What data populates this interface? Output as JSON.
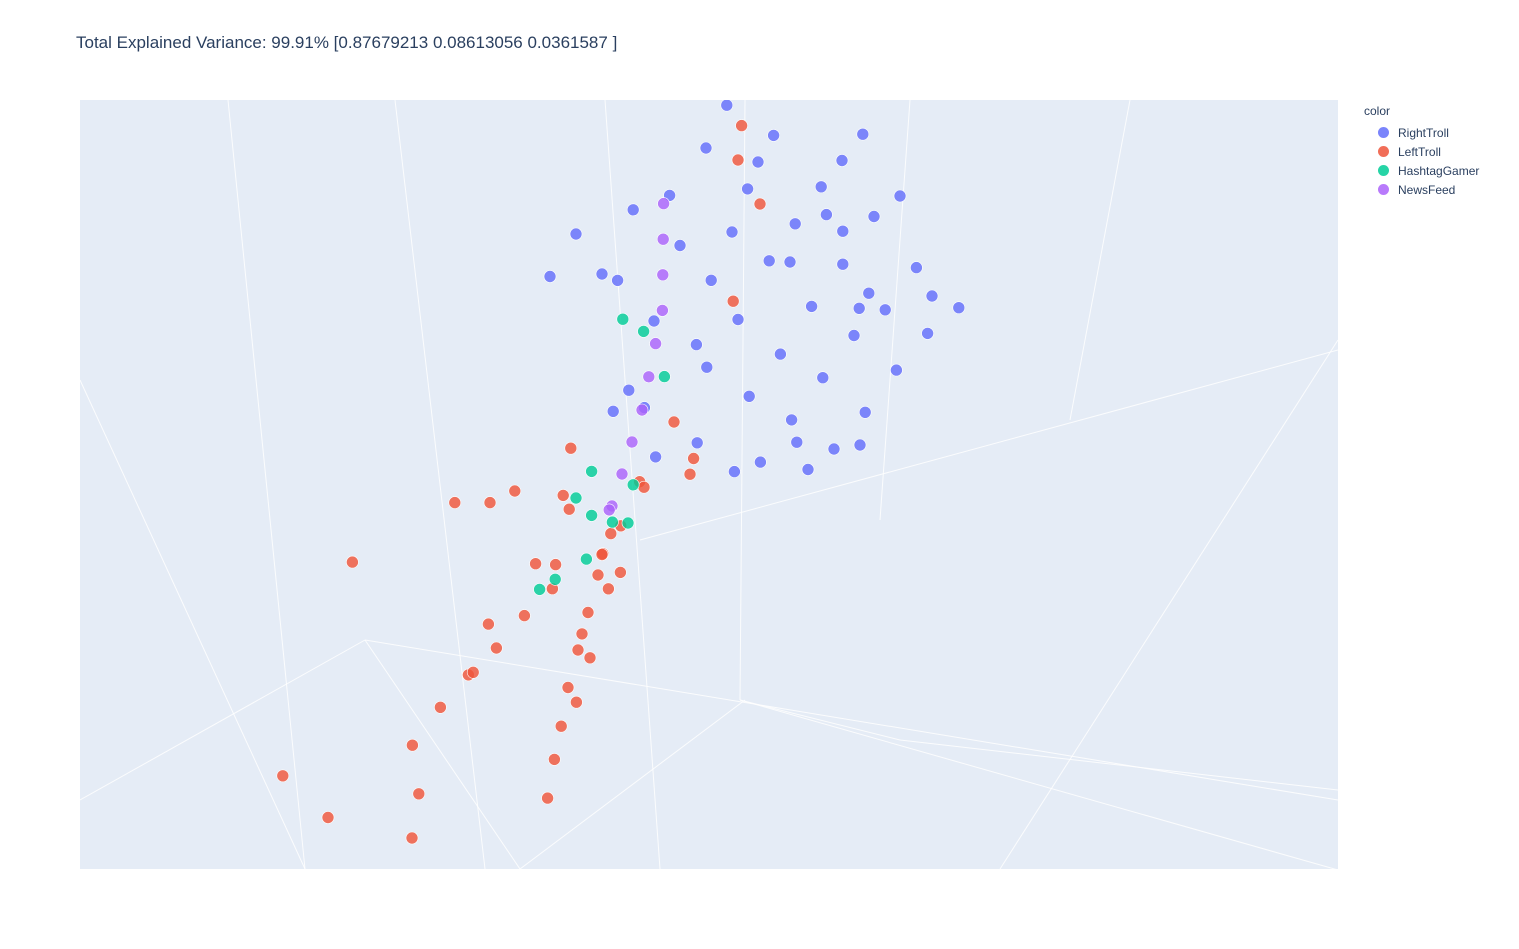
{
  "chart_data": {
    "type": "scatter",
    "projection": "3d",
    "title": "Total Explained Variance: 99.91% [0.87679213 0.08613056 0.0361587 ]",
    "legend": {
      "title": "color",
      "placement": "top-right",
      "entries": [
        {
          "name": "RightTroll",
          "color": "#636efa"
        },
        {
          "name": "LeftTroll",
          "color": "#ef553b"
        },
        {
          "name": "HashtagGamer",
          "color": "#00cc96"
        },
        {
          "name": "NewsFeed",
          "color": "#ab63fa"
        }
      ]
    },
    "axes": {
      "x": "PC1",
      "y": "PC2",
      "z": "PC3",
      "tick_labels_shown": false,
      "axis_titles_shown": false
    },
    "grid": true,
    "scene_background": "#e5ecf6",
    "series": [
      {
        "name": "RightTroll",
        "color": "#636efa",
        "points": [
          [
            -2.5,
            0,
            3.2
          ],
          [
            -2.8,
            0,
            3.7
          ],
          [
            -3.3,
            0,
            4.2
          ],
          [
            -3.8,
            0,
            4.7
          ],
          [
            -4.3,
            0,
            5.2
          ],
          [
            -4.8,
            0,
            5.6
          ],
          [
            -1.5,
            0,
            3.9
          ],
          [
            -0.3,
            0,
            4.4
          ],
          [
            0,
            0,
            4.8
          ],
          [
            0.5,
            0,
            6.0
          ],
          [
            1.0,
            0,
            5.7
          ],
          [
            -2.0,
            1,
            2.3
          ],
          [
            -2.6,
            1,
            2.8
          ],
          [
            -3.1,
            1,
            3.0
          ],
          [
            -3.6,
            1,
            3.2
          ],
          [
            -4.0,
            1,
            3.3
          ],
          [
            -4.4,
            1,
            3.4
          ],
          [
            -3.0,
            1,
            2.4
          ],
          [
            -1.2,
            1,
            2.6
          ],
          [
            0.1,
            1,
            3.0
          ],
          [
            0.4,
            1,
            2.9
          ],
          [
            -1.6,
            2,
            1.5
          ],
          [
            -2.2,
            2,
            1.7
          ],
          [
            -2.8,
            2,
            2.0
          ],
          [
            -3.4,
            2,
            2.2
          ],
          [
            -4.0,
            2,
            2.5
          ],
          [
            -4.5,
            2,
            2.4
          ],
          [
            -0.6,
            2,
            1.6
          ],
          [
            0.2,
            2,
            2.1
          ],
          [
            -3.9,
            2,
            1.2
          ],
          [
            -1.2,
            3,
            0.9
          ],
          [
            -1.8,
            3,
            1.1
          ],
          [
            -2.4,
            3,
            1.3
          ],
          [
            -3.0,
            3,
            1.5
          ],
          [
            -3.6,
            3,
            1.4
          ],
          [
            -4.2,
            3,
            1.6
          ],
          [
            -0.7,
            3,
            1.2
          ],
          [
            -4.5,
            3,
            0.8
          ],
          [
            -2.0,
            4,
            0.6
          ],
          [
            -2.6,
            4,
            0.7
          ],
          [
            -3.2,
            4,
            0.9
          ],
          [
            -3.8,
            4,
            1.0
          ],
          [
            -4.4,
            4,
            0.9
          ],
          [
            -1.5,
            4,
            0.7
          ],
          [
            -2.5,
            4,
            0.2
          ],
          [
            -2.1,
            0,
            2.7
          ],
          [
            -1.0,
            0,
            3.0
          ],
          [
            -2.0,
            0,
            5.2
          ],
          [
            -2.4,
            0,
            5.6
          ],
          [
            -1.3,
            0,
            5.0
          ],
          [
            -0.6,
            0,
            5.4
          ],
          [
            -3.0,
            0,
            4.0
          ],
          [
            -1.4,
            1,
            2.0
          ],
          [
            -3.4,
            2,
            2.8
          ],
          [
            -1.9,
            3,
            0.6
          ],
          [
            -3.7,
            1,
            2.6
          ],
          [
            -0.2,
            1,
            2.4
          ],
          [
            -3.1,
            3,
            1.9
          ]
        ]
      },
      {
        "name": "LeftTroll",
        "color": "#ef553b",
        "points": [
          [
            0.2,
            0.6,
            0.4
          ],
          [
            0.6,
            1.0,
            0.5
          ],
          [
            1.0,
            1.5,
            0.6
          ],
          [
            1.5,
            2.0,
            0.5
          ],
          [
            2.0,
            2.5,
            0.4
          ],
          [
            2.5,
            3.0,
            0.3
          ],
          [
            3.0,
            3.6,
            0.2
          ],
          [
            3.5,
            4.2,
            0.2
          ],
          [
            4.0,
            4.8,
            0.1
          ],
          [
            1.2,
            0.4,
            0.3
          ],
          [
            1.8,
            0.5,
            0.4
          ],
          [
            2.4,
            0.6,
            0.4
          ],
          [
            3.0,
            0.7,
            0.5
          ],
          [
            3.6,
            0.8,
            0.5
          ],
          [
            4.2,
            0.9,
            0.4
          ],
          [
            0.5,
            1.4,
            1.0
          ],
          [
            1.0,
            2.2,
            0.8
          ],
          [
            1.6,
            2.8,
            1.2
          ],
          [
            2.2,
            3.2,
            0.6
          ],
          [
            2.8,
            1.0,
            1.3
          ],
          [
            3.4,
            1.5,
            1.1
          ],
          [
            2.0,
            1.8,
            1.8
          ],
          [
            1.3,
            0.9,
            2.2
          ],
          [
            5.0,
            2.4,
            0.6
          ],
          [
            5.5,
            3.0,
            0.4
          ],
          [
            6.0,
            3.4,
            0.2
          ],
          [
            6.5,
            2.0,
            1.5
          ],
          [
            7.0,
            1.4,
            2.6
          ],
          [
            7.4,
            2.4,
            1.0
          ],
          [
            -5.5,
            -4.0,
            0.0
          ],
          [
            -6.0,
            -5.5,
            0.0
          ],
          [
            -6.5,
            -6.2,
            0.0
          ],
          [
            -4.0,
            -2.4,
            0.0
          ],
          [
            -2.0,
            -1.0,
            0.0
          ],
          [
            4.8,
            0.0,
            4.1
          ],
          [
            3.2,
            0.6,
            3.8
          ],
          [
            2.4,
            0.4,
            3.0
          ],
          [
            1.8,
            0.2,
            2.6
          ],
          [
            1.0,
            0.6,
            1.6
          ],
          [
            0.6,
            0.0,
            2.2
          ],
          [
            1.4,
            0.2,
            0.9
          ],
          [
            2.6,
            3.6,
            1.5
          ],
          [
            3.2,
            4.4,
            1.0
          ],
          [
            0.0,
            0.0,
            -0.3
          ],
          [
            -0.6,
            0.2,
            0.5
          ],
          [
            -1.2,
            0.8,
            0.2
          ],
          [
            -0.9,
            1.4,
            0.9
          ],
          [
            0.3,
            1.8,
            1.6
          ]
        ]
      },
      {
        "name": "HashtagGamer",
        "color": "#00cc96",
        "points": [
          [
            -0.4,
            0,
            3.6
          ],
          [
            -0.8,
            0,
            3.0
          ],
          [
            0.2,
            0,
            1.4
          ],
          [
            0.5,
            0,
            1.2
          ],
          [
            -0.6,
            0,
            0.4
          ],
          [
            0.2,
            0,
            0.6
          ],
          [
            1.2,
            0,
            0.2
          ],
          [
            0.9,
            0,
            0.1
          ],
          [
            -1.2,
            0,
            1.8
          ],
          [
            -0.2,
            0,
            0.1
          ],
          [
            0.3,
            0,
            -0.1
          ],
          [
            -0.5,
            0,
            -0.2
          ]
        ]
      },
      {
        "name": "NewsFeed",
        "color": "#ab63fa",
        "points": [
          [
            -0.5,
            -0.5,
            0.0
          ],
          [
            -1.0,
            -1.0,
            0.0
          ],
          [
            -1.5,
            -1.5,
            0.0
          ],
          [
            -2.0,
            -2.0,
            0.0
          ],
          [
            -2.5,
            -2.6,
            0.0
          ],
          [
            -3.0,
            -3.2,
            0.0
          ],
          [
            -3.5,
            -3.8,
            0.0
          ],
          [
            -4.0,
            -4.6,
            0.0
          ],
          [
            -4.5,
            -5.4,
            0.0
          ],
          [
            -5.0,
            -6.2,
            0.0
          ],
          [
            -0.2,
            -0.1,
            0.3
          ]
        ]
      }
    ]
  }
}
